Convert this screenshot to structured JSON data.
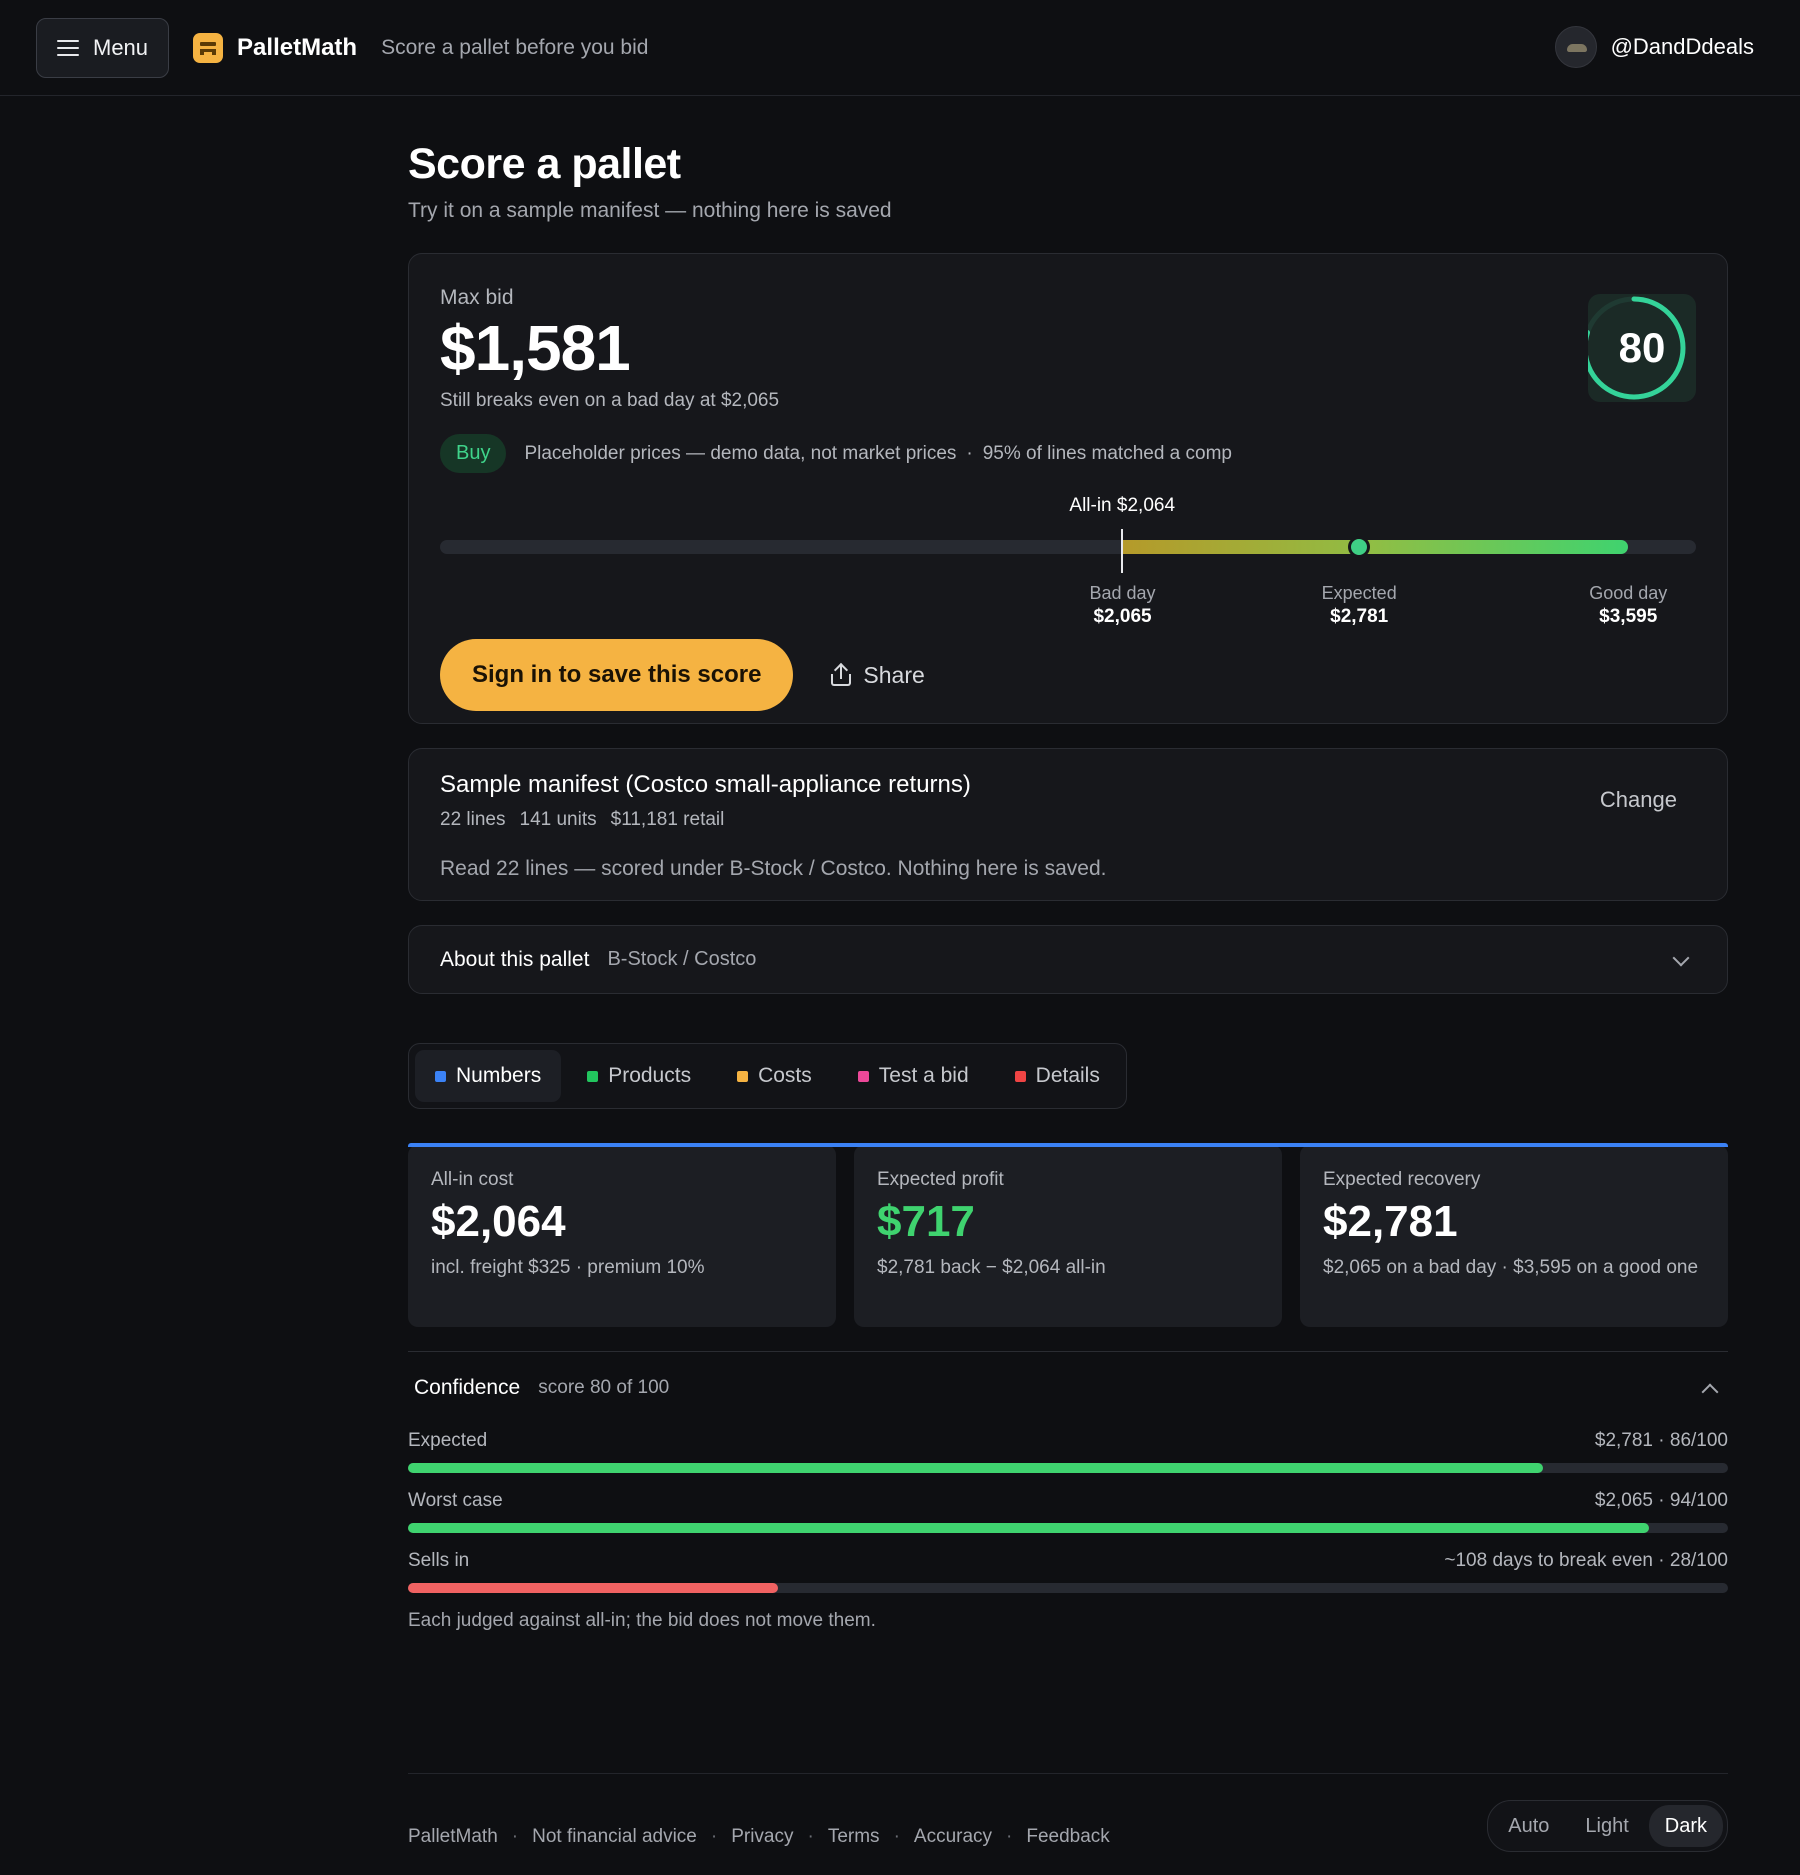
{
  "header": {
    "menu_label": "Menu",
    "brand": "PalletMath",
    "tagline": "Score a pallet before you bid",
    "username": "@DandDdeals"
  },
  "page": {
    "title": "Score a pallet",
    "subtitle": "Try it on a sample manifest — nothing here is saved"
  },
  "score_card": {
    "max_bid_label": "Max bid",
    "max_bid_value": "$1,581",
    "max_bid_sub": "Still breaks even on a bad day at $2,065",
    "score": "80",
    "score_fraction": 0.8,
    "verdict": "Buy",
    "verdict_color": "#3fd38a",
    "note": "Placeholder prices — demo data, not market prices",
    "sep": "·",
    "match_note": "95% of lines matched a comp",
    "range": {
      "allin_label": "All-in $2,064",
      "min": 0,
      "max": 3800,
      "allin": 2064,
      "bad_day": 2065,
      "expected": 2781,
      "good_day": 3595,
      "bad_day_label": "Bad day",
      "bad_day_value": "$2,065",
      "expected_label": "Expected",
      "expected_value": "$2,781",
      "good_day_label": "Good day",
      "good_day_value": "$3,595"
    },
    "signin_label": "Sign in to save this score",
    "share_label": "Share"
  },
  "manifest": {
    "title": "Sample manifest (Costco small-appliance returns)",
    "lines": "22 lines",
    "units": "141 units",
    "retail": "$11,181 retail",
    "note": "Read 22 lines — scored under B-Stock / Costco. Nothing here is saved.",
    "change_label": "Change"
  },
  "about": {
    "title": "About this pallet",
    "source": "B-Stock / Costco"
  },
  "tabs": [
    {
      "label": "Numbers",
      "color": "#3b82f6"
    },
    {
      "label": "Products",
      "color": "#22c55e"
    },
    {
      "label": "Costs",
      "color": "#f5b342"
    },
    {
      "label": "Test a bid",
      "color": "#ec4899"
    },
    {
      "label": "Details",
      "color": "#ef4444"
    }
  ],
  "stats": [
    {
      "label": "All-in cost",
      "value": "$2,064",
      "sub": "incl. freight $325 · premium 10%"
    },
    {
      "label": "Expected profit",
      "value": "$717",
      "sub": "$2,781 back − $2,064 all-in"
    },
    {
      "label": "Expected recovery",
      "value": "$2,781",
      "sub": "$2,065 on a bad day · $3,595 on a good one"
    }
  ],
  "confidence": {
    "title": "Confidence",
    "sub": "score 80 of 100",
    "bars": [
      {
        "label": "Expected",
        "value": "$2,781 · 86/100",
        "score": 86,
        "color": "#3fd36f"
      },
      {
        "label": "Worst case",
        "value": "$2,065 · 94/100",
        "score": 94,
        "color": "#3fd36f"
      },
      {
        "label": "Sells in",
        "value": "~108 days to break even · 28/100",
        "score": 28,
        "color": "#f06262"
      }
    ],
    "note": "Each judged against all-in; the bid does not move them."
  },
  "footer": {
    "links": [
      "PalletMath",
      "Not financial advice",
      "Privacy",
      "Terms",
      "Accuracy",
      "Feedback"
    ],
    "sep": "·",
    "theme": [
      "Auto",
      "Light",
      "Dark"
    ]
  }
}
